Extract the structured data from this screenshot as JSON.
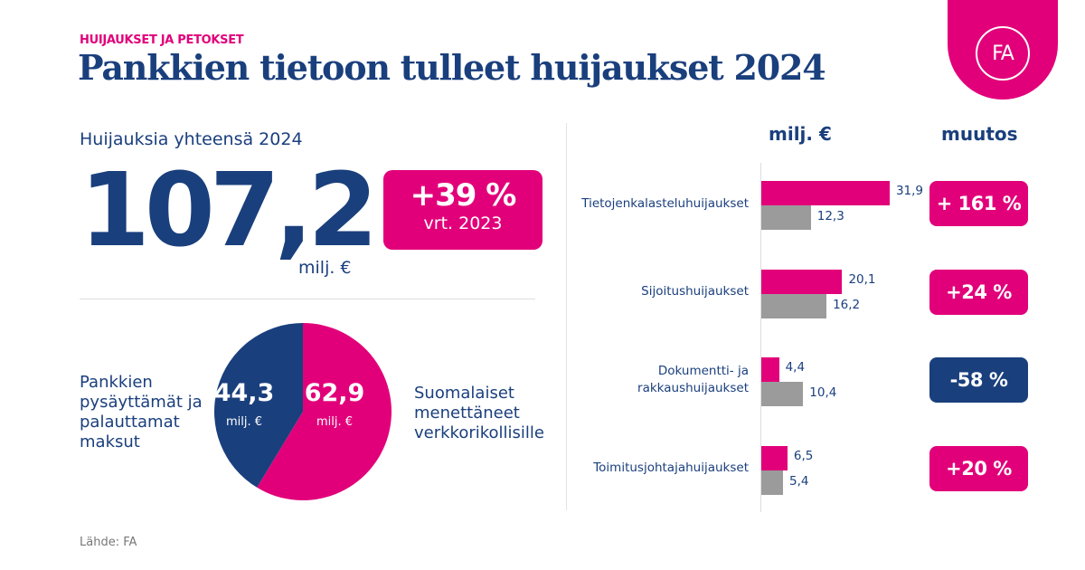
{
  "header": {
    "kicker": "HUIJAUKSET JA PETOKSET",
    "title": "Pankkien tietoon tulleet huijaukset 2024",
    "logo": "FA"
  },
  "total": {
    "label": "Huijauksia yhteensä 2024",
    "value": "107,2",
    "unit": "milj. €",
    "change": "+39 %",
    "change_ref": "vrt. 2023"
  },
  "colors": {
    "pink": "#e2007a",
    "navy": "#1a3f7d",
    "gray": "#9b9b9b"
  },
  "chart_data": [
    {
      "type": "pie",
      "slices": [
        {
          "name": "Pankkien pysäyttämät ja palauttamat maksut",
          "value": 44.3,
          "label": "44,3",
          "unit": "milj. €",
          "color": "#1a3f7d"
        },
        {
          "name": "Suomalaiset menettäneet verkkorikollisille",
          "value": 62.9,
          "label": "62,9",
          "unit": "milj. €",
          "color": "#e2007a"
        }
      ],
      "left_label": [
        "Pankkien",
        "pysäyttämät ja",
        "palauttamat",
        "maksut"
      ],
      "right_label": [
        "Suomalaiset",
        "menettäneet",
        "verkkorikollisille"
      ]
    },
    {
      "type": "bar",
      "orientation": "horizontal",
      "value_header": "milj. €",
      "change_header": "muutos",
      "series": [
        {
          "name": "2024",
          "color": "#e2007a"
        },
        {
          "name": "2023",
          "color": "#9b9b9b"
        }
      ],
      "categories": [
        {
          "label": [
            "Tietojenkalasteluhuijaukset"
          ],
          "v2024": 31.9,
          "l2024": "31,9",
          "v2023": 12.3,
          "l2023": "12,3",
          "change": "+ 161 %",
          "negative": false
        },
        {
          "label": [
            "Sijoitushuijaukset"
          ],
          "v2024": 20.1,
          "l2024": "20,1",
          "v2023": 16.2,
          "l2023": "16,2",
          "change": "+24 %",
          "negative": false
        },
        {
          "label": [
            "Dokumentti- ja",
            "rakkaushuijaukset"
          ],
          "v2024": 4.4,
          "l2024": "4,4",
          "v2023": 10.4,
          "l2023": "10,4",
          "change": "-58 %",
          "negative": true
        },
        {
          "label": [
            "Toimitusjohtajahuijaukset"
          ],
          "v2024": 6.5,
          "l2024": "6,5",
          "v2023": 5.4,
          "l2023": "5,4",
          "change": "+20 %",
          "negative": false
        }
      ]
    }
  ],
  "source": "Lähde: FA"
}
